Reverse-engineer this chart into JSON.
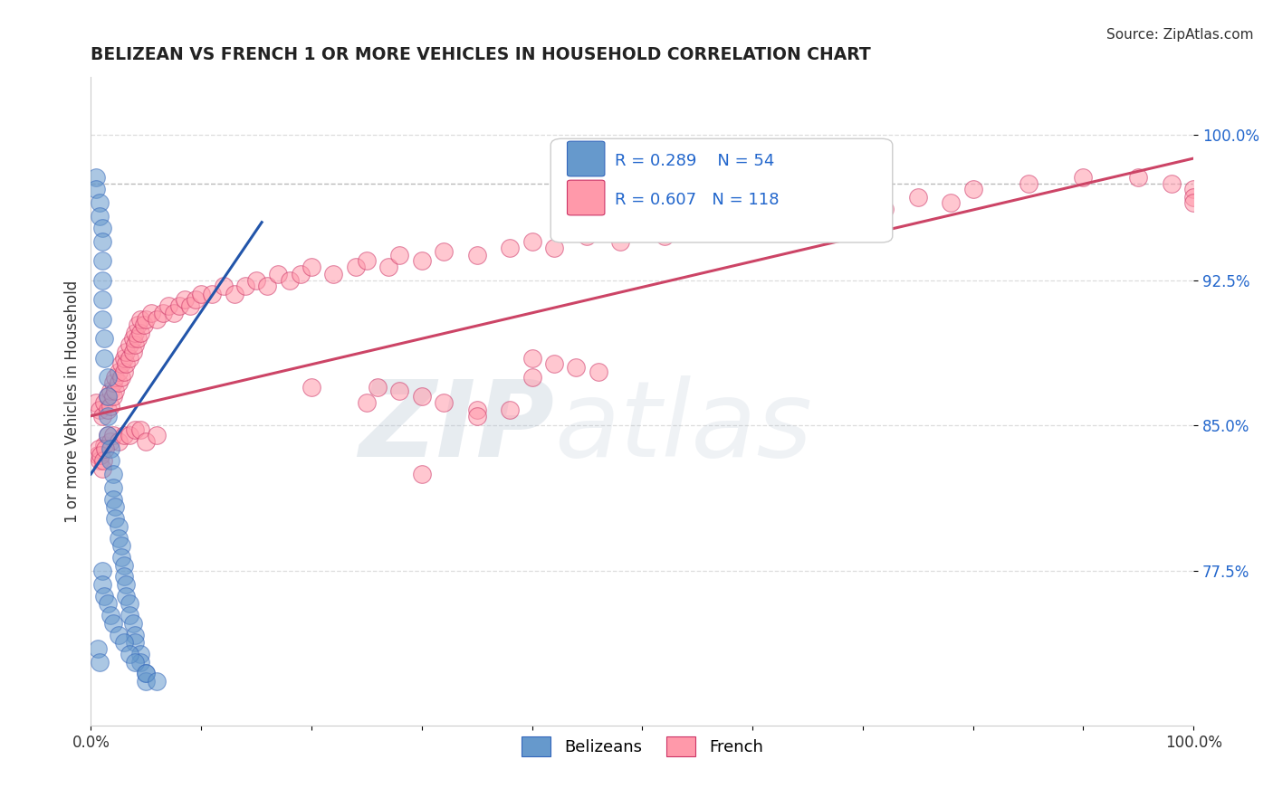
{
  "title": "BELIZEAN VS FRENCH 1 OR MORE VEHICLES IN HOUSEHOLD CORRELATION CHART",
  "source_text": "Source: ZipAtlas.com",
  "ylabel": "1 or more Vehicles in Household",
  "xlim": [
    0.0,
    1.0
  ],
  "ylim": [
    0.695,
    1.03
  ],
  "yticks": [
    0.775,
    0.85,
    0.925,
    1.0
  ],
  "ytick_labels": [
    "77.5%",
    "85.0%",
    "92.5%",
    "100.0%"
  ],
  "xticks": [
    0.0,
    0.1,
    0.2,
    0.3,
    0.4,
    0.5,
    0.6,
    0.7,
    0.8,
    0.9,
    1.0
  ],
  "xtick_labels": [
    "0.0%",
    "",
    "",
    "",
    "",
    "",
    "",
    "",
    "",
    "",
    "100.0%"
  ],
  "legend_blue_label": "Belizeans",
  "legend_pink_label": "French",
  "R_blue": 0.289,
  "N_blue": 54,
  "R_pink": 0.607,
  "N_pink": 118,
  "blue_color": "#6699CC",
  "pink_color": "#FF99AA",
  "blue_edge_color": "#3366BB",
  "pink_edge_color": "#CC3366",
  "blue_line_color": "#2255AA",
  "pink_line_color": "#CC4466",
  "watermark_zip": "ZIP",
  "watermark_atlas": "atlas",
  "dashed_line_y": 0.975,
  "blue_scatter_x": [
    0.005,
    0.005,
    0.008,
    0.008,
    0.01,
    0.01,
    0.01,
    0.01,
    0.01,
    0.01,
    0.012,
    0.012,
    0.015,
    0.015,
    0.015,
    0.015,
    0.018,
    0.018,
    0.02,
    0.02,
    0.02,
    0.022,
    0.022,
    0.025,
    0.025,
    0.028,
    0.028,
    0.03,
    0.03,
    0.032,
    0.032,
    0.035,
    0.035,
    0.038,
    0.04,
    0.04,
    0.045,
    0.045,
    0.05,
    0.05,
    0.006,
    0.008,
    0.01,
    0.01,
    0.012,
    0.015,
    0.018,
    0.02,
    0.025,
    0.03,
    0.035,
    0.04,
    0.05,
    0.06
  ],
  "blue_scatter_y": [
    0.978,
    0.972,
    0.965,
    0.958,
    0.952,
    0.945,
    0.935,
    0.925,
    0.915,
    0.905,
    0.895,
    0.885,
    0.875,
    0.865,
    0.855,
    0.845,
    0.838,
    0.832,
    0.825,
    0.818,
    0.812,
    0.808,
    0.802,
    0.798,
    0.792,
    0.788,
    0.782,
    0.778,
    0.772,
    0.768,
    0.762,
    0.758,
    0.752,
    0.748,
    0.742,
    0.738,
    0.732,
    0.728,
    0.722,
    0.718,
    0.735,
    0.728,
    0.775,
    0.768,
    0.762,
    0.758,
    0.752,
    0.748,
    0.742,
    0.738,
    0.732,
    0.728,
    0.722,
    0.718
  ],
  "pink_scatter_x": [
    0.005,
    0.008,
    0.01,
    0.012,
    0.015,
    0.015,
    0.018,
    0.018,
    0.02,
    0.02,
    0.022,
    0.022,
    0.025,
    0.025,
    0.028,
    0.028,
    0.03,
    0.03,
    0.032,
    0.032,
    0.035,
    0.035,
    0.038,
    0.038,
    0.04,
    0.04,
    0.042,
    0.042,
    0.045,
    0.045,
    0.048,
    0.05,
    0.055,
    0.06,
    0.065,
    0.07,
    0.075,
    0.08,
    0.085,
    0.09,
    0.095,
    0.1,
    0.11,
    0.12,
    0.13,
    0.14,
    0.15,
    0.16,
    0.17,
    0.18,
    0.19,
    0.2,
    0.22,
    0.24,
    0.25,
    0.27,
    0.28,
    0.3,
    0.32,
    0.35,
    0.38,
    0.4,
    0.42,
    0.45,
    0.48,
    0.5,
    0.52,
    0.55,
    0.58,
    0.6,
    0.62,
    0.65,
    0.68,
    0.7,
    0.72,
    0.75,
    0.78,
    0.8,
    0.85,
    0.9,
    0.95,
    0.98,
    1.0,
    1.0,
    1.0,
    0.2,
    0.25,
    0.3,
    0.35,
    0.4,
    0.006,
    0.008,
    0.01,
    0.012,
    0.015,
    0.018,
    0.02,
    0.025,
    0.03,
    0.035,
    0.04,
    0.045,
    0.05,
    0.06,
    0.007,
    0.009,
    0.011,
    0.013,
    0.4,
    0.42,
    0.44,
    0.46,
    0.35,
    0.38,
    0.32,
    0.3,
    0.28,
    0.26
  ],
  "pink_scatter_y": [
    0.862,
    0.858,
    0.855,
    0.862,
    0.858,
    0.865,
    0.86,
    0.868,
    0.865,
    0.872,
    0.868,
    0.875,
    0.872,
    0.878,
    0.875,
    0.882,
    0.878,
    0.885,
    0.882,
    0.888,
    0.885,
    0.892,
    0.888,
    0.895,
    0.892,
    0.898,
    0.895,
    0.902,
    0.898,
    0.905,
    0.902,
    0.905,
    0.908,
    0.905,
    0.908,
    0.912,
    0.908,
    0.912,
    0.915,
    0.912,
    0.915,
    0.918,
    0.918,
    0.922,
    0.918,
    0.922,
    0.925,
    0.922,
    0.928,
    0.925,
    0.928,
    0.932,
    0.928,
    0.932,
    0.935,
    0.932,
    0.938,
    0.935,
    0.94,
    0.938,
    0.942,
    0.945,
    0.942,
    0.948,
    0.945,
    0.952,
    0.948,
    0.955,
    0.952,
    0.958,
    0.955,
    0.962,
    0.958,
    0.965,
    0.962,
    0.968,
    0.965,
    0.972,
    0.975,
    0.978,
    0.978,
    0.975,
    0.972,
    0.968,
    0.965,
    0.87,
    0.862,
    0.825,
    0.858,
    0.875,
    0.835,
    0.832,
    0.828,
    0.84,
    0.845,
    0.842,
    0.845,
    0.842,
    0.845,
    0.845,
    0.848,
    0.848,
    0.842,
    0.845,
    0.838,
    0.835,
    0.832,
    0.838,
    0.885,
    0.882,
    0.88,
    0.878,
    0.855,
    0.858,
    0.862,
    0.865,
    0.868,
    0.87
  ]
}
